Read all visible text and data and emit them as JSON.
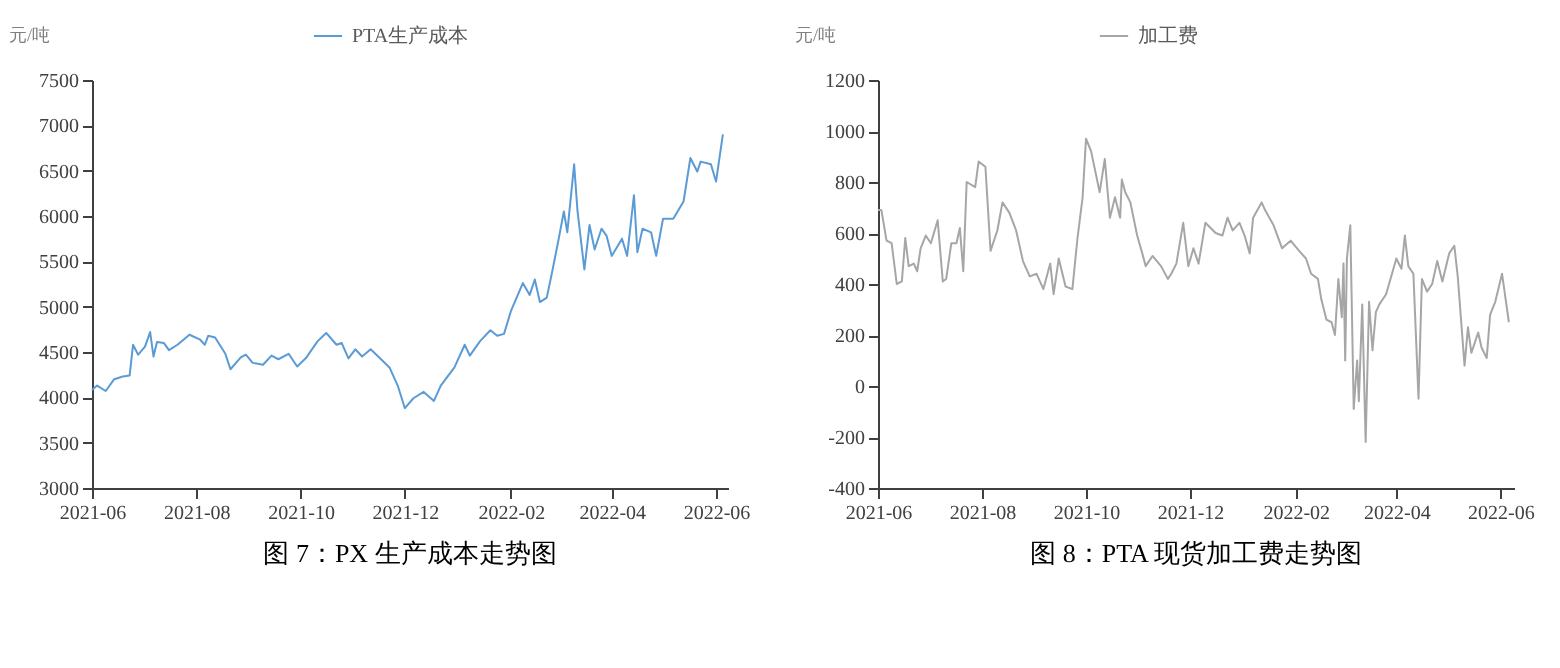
{
  "chart_data": [
    {
      "type": "line",
      "title": "图 7：PX 生产成本走势图",
      "ylabel": "元/吨",
      "legend": "top",
      "grid": false,
      "xlim": [
        "2021-06-01",
        "2022-06-08"
      ],
      "xticks": [
        "2021-06",
        "2021-08",
        "2021-10",
        "2021-12",
        "2022-02",
        "2022-04",
        "2022-06"
      ],
      "ylim": [
        3000,
        7500
      ],
      "yticks": [
        3000,
        3500,
        4000,
        4500,
        5000,
        5500,
        6000,
        6500,
        7000,
        7500
      ],
      "series": [
        {
          "name": "PTA生产成本",
          "color": "#5b9bd5",
          "x": [
            "2021-06-01",
            "2021-06-04",
            "2021-06-09",
            "2021-06-14",
            "2021-06-19",
            "2021-06-23",
            "2021-06-25",
            "2021-06-28",
            "2021-07-02",
            "2021-07-05",
            "2021-07-07",
            "2021-07-09",
            "2021-07-13",
            "2021-07-16",
            "2021-07-21",
            "2021-07-28",
            "2021-08-03",
            "2021-08-06",
            "2021-08-08",
            "2021-08-12",
            "2021-08-18",
            "2021-08-21",
            "2021-08-27",
            "2021-08-30",
            "2021-09-03",
            "2021-09-09",
            "2021-09-14",
            "2021-09-18",
            "2021-09-24",
            "2021-09-29",
            "2021-10-04",
            "2021-10-11",
            "2021-10-16",
            "2021-10-22",
            "2021-10-25",
            "2021-10-29",
            "2021-11-02",
            "2021-11-06",
            "2021-11-11",
            "2021-11-16",
            "2021-11-22",
            "2021-11-27",
            "2021-12-01",
            "2021-12-06",
            "2021-12-12",
            "2021-12-18",
            "2021-12-22",
            "2021-12-30",
            "2022-01-05",
            "2022-01-08",
            "2022-01-14",
            "2022-01-20",
            "2022-01-24",
            "2022-01-28",
            "2022-02-01",
            "2022-02-08",
            "2022-02-12",
            "2022-02-15",
            "2022-02-18",
            "2022-02-22",
            "2022-02-25",
            "2022-03-01",
            "2022-03-04",
            "2022-03-06",
            "2022-03-10",
            "2022-03-12",
            "2022-03-16",
            "2022-03-19",
            "2022-03-22",
            "2022-03-26",
            "2022-03-29",
            "2022-04-01",
            "2022-04-07",
            "2022-04-10",
            "2022-04-14",
            "2022-04-16",
            "2022-04-19",
            "2022-04-24",
            "2022-04-27",
            "2022-05-01",
            "2022-05-07",
            "2022-05-13",
            "2022-05-17",
            "2022-05-21",
            "2022-05-23",
            "2022-05-29",
            "2022-06-01",
            "2022-06-05"
          ],
          "values": [
            4080,
            4130,
            4070,
            4200,
            4230,
            4240,
            4580,
            4470,
            4560,
            4720,
            4450,
            4610,
            4600,
            4520,
            4580,
            4690,
            4640,
            4580,
            4680,
            4660,
            4480,
            4310,
            4440,
            4470,
            4380,
            4360,
            4460,
            4420,
            4480,
            4340,
            4430,
            4620,
            4710,
            4580,
            4600,
            4430,
            4530,
            4450,
            4530,
            4440,
            4330,
            4120,
            3880,
            3990,
            4060,
            3960,
            4130,
            4330,
            4580,
            4460,
            4620,
            4740,
            4680,
            4700,
            4950,
            5260,
            5130,
            5300,
            5050,
            5100,
            5370,
            5750,
            6050,
            5820,
            6570,
            6050,
            5410,
            5900,
            5630,
            5860,
            5780,
            5560,
            5750,
            5560,
            6230,
            5600,
            5860,
            5820,
            5560,
            5970,
            5970,
            6160,
            6640,
            6490,
            6600,
            6570,
            6380,
            6900
          ]
        }
      ]
    },
    {
      "type": "line",
      "title": "图 8：PTA 现货加工费走势图",
      "ylabel": "元/吨",
      "legend": "top",
      "grid": false,
      "xlim": [
        "2021-06-01",
        "2022-06-09"
      ],
      "xticks": [
        "2021-06",
        "2021-08",
        "2021-10",
        "2021-12",
        "2022-02",
        "2022-04",
        "2022-06"
      ],
      "ylim": [
        -400,
        1200
      ],
      "yticks": [
        -400,
        -200,
        0,
        200,
        400,
        600,
        800,
        1000,
        1200
      ],
      "series": [
        {
          "name": "加工费",
          "color": "#a6a6a6",
          "x": [
            "2021-06-01",
            "2021-06-03",
            "2021-06-06",
            "2021-06-09",
            "2021-06-12",
            "2021-06-15",
            "2021-06-17",
            "2021-06-19",
            "2021-06-22",
            "2021-06-24",
            "2021-06-26",
            "2021-06-29",
            "2021-07-02",
            "2021-07-06",
            "2021-07-09",
            "2021-07-11",
            "2021-07-14",
            "2021-07-17",
            "2021-07-19",
            "2021-07-21",
            "2021-07-23",
            "2021-07-28",
            "2021-07-30",
            "2021-08-03",
            "2021-08-06",
            "2021-08-10",
            "2021-08-13",
            "2021-08-17",
            "2021-08-21",
            "2021-08-25",
            "2021-08-29",
            "2021-09-02",
            "2021-09-06",
            "2021-09-10",
            "2021-09-12",
            "2021-09-15",
            "2021-09-19",
            "2021-09-23",
            "2021-09-26",
            "2021-09-29",
            "2021-10-01",
            "2021-10-04",
            "2021-10-09",
            "2021-10-12",
            "2021-10-15",
            "2021-10-18",
            "2021-10-21",
            "2021-10-22",
            "2021-10-24",
            "2021-10-27",
            "2021-10-31",
            "2021-11-03",
            "2021-11-05",
            "2021-11-09",
            "2021-11-14",
            "2021-11-18",
            "2021-11-20",
            "2021-11-23",
            "2021-11-27",
            "2021-11-30",
            "2021-12-03",
            "2021-12-06",
            "2021-12-10",
            "2021-12-16",
            "2021-12-20",
            "2021-12-23",
            "2021-12-26",
            "2021-12-30",
            "2022-01-02",
            "2022-01-05",
            "2022-01-07",
            "2022-01-12",
            "2022-01-14",
            "2022-01-19",
            "2022-01-24",
            "2022-01-29",
            "2022-02-03",
            "2022-02-07",
            "2022-02-10",
            "2022-02-14",
            "2022-02-16",
            "2022-02-19",
            "2022-02-22",
            "2022-02-24",
            "2022-02-26",
            "2022-02-28",
            "2022-03-01",
            "2022-03-02",
            "2022-03-03",
            "2022-03-05",
            "2022-03-07",
            "2022-03-09",
            "2022-03-10",
            "2022-03-12",
            "2022-03-14",
            "2022-03-16",
            "2022-03-18",
            "2022-03-20",
            "2022-03-22",
            "2022-03-26",
            "2022-04-01",
            "2022-04-04",
            "2022-04-06",
            "2022-04-08",
            "2022-04-11",
            "2022-04-14",
            "2022-04-16",
            "2022-04-19",
            "2022-04-22",
            "2022-04-25",
            "2022-04-28",
            "2022-05-02",
            "2022-05-05",
            "2022-05-07",
            "2022-05-11",
            "2022-05-13",
            "2022-05-15",
            "2022-05-19",
            "2022-05-21",
            "2022-05-24",
            "2022-05-26",
            "2022-05-29",
            "2022-06-02",
            "2022-06-06"
          ],
          "values": [
            690,
            690,
            570,
            560,
            400,
            410,
            580,
            470,
            480,
            450,
            540,
            590,
            560,
            650,
            410,
            420,
            560,
            560,
            620,
            450,
            800,
            780,
            880,
            860,
            530,
            610,
            720,
            680,
            610,
            490,
            430,
            440,
            380,
            480,
            360,
            500,
            390,
            380,
            580,
            740,
            970,
            920,
            760,
            890,
            660,
            740,
            660,
            810,
            760,
            720,
            590,
            520,
            470,
            510,
            470,
            420,
            440,
            480,
            640,
            470,
            540,
            480,
            640,
            600,
            590,
            660,
            610,
            640,
            590,
            520,
            660,
            720,
            690,
            630,
            540,
            570,
            530,
            500,
            440,
            420,
            340,
            260,
            250,
            200,
            420,
            270,
            480,
            100,
            500,
            630,
            -90,
            100,
            -60,
            320,
            -220,
            330,
            140,
            290,
            320,
            360,
            500,
            460,
            590,
            470,
            440,
            -50,
            420,
            370,
            400,
            490,
            410,
            520,
            550,
            430,
            80,
            230,
            130,
            210,
            150,
            110,
            280,
            330,
            440,
            250
          ]
        }
      ]
    }
  ]
}
